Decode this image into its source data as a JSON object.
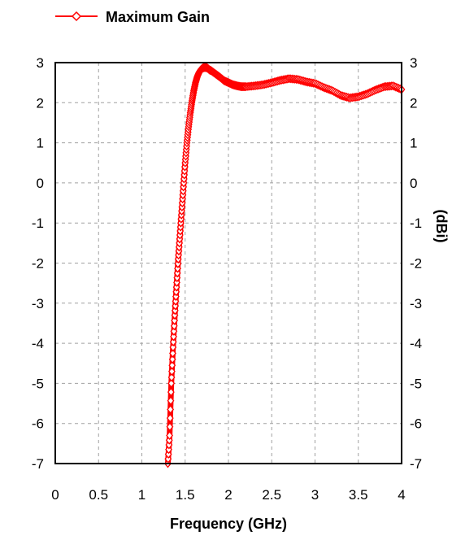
{
  "chart_data": {
    "type": "line",
    "title": "",
    "xlabel": "Frequency (GHz)",
    "ylabel_left": "",
    "ylabel_right": "(dBi)",
    "xlim": [
      0,
      4
    ],
    "ylim": [
      -7,
      3
    ],
    "x_ticks": [
      0,
      0.5,
      1,
      1.5,
      2,
      2.5,
      3,
      3.5,
      4
    ],
    "x_tick_labels": [
      "0",
      "0.5",
      "1",
      "1.5",
      "2",
      "2.5",
      "3",
      "3.5",
      "4"
    ],
    "y_ticks": [
      3,
      2,
      1,
      0,
      -1,
      -2,
      -3,
      -4,
      -5,
      -6,
      -7
    ],
    "y_tick_labels": [
      "3",
      "2",
      "1",
      "0",
      "-1",
      "-2",
      "-3",
      "-4",
      "-5",
      "-6",
      "-7"
    ],
    "grid": true,
    "legend_position": "top-left",
    "colors": {
      "series": "#ff0000",
      "grid": "#a0a0a0",
      "axes": "#000000"
    },
    "series": [
      {
        "name": "Maximum Gain",
        "marker": "diamond",
        "color": "#ff0000",
        "x": [
          1.3,
          1.32,
          1.34,
          1.36,
          1.38,
          1.4,
          1.42,
          1.44,
          1.46,
          1.48,
          1.5,
          1.52,
          1.54,
          1.56,
          1.58,
          1.6,
          1.62,
          1.64,
          1.66,
          1.68,
          1.7,
          1.72,
          1.74,
          1.76,
          1.78,
          1.8,
          1.85,
          1.9,
          1.95,
          2.0,
          2.05,
          2.1,
          2.15,
          2.2,
          2.3,
          2.4,
          2.5,
          2.6,
          2.7,
          2.8,
          2.9,
          3.0,
          3.1,
          3.2,
          3.3,
          3.4,
          3.5,
          3.6,
          3.7,
          3.8,
          3.9,
          4.0
        ],
        "y": [
          -7.0,
          -6.3,
          -5.0,
          -4.1,
          -3.3,
          -2.6,
          -1.9,
          -1.3,
          -0.7,
          -0.1,
          0.5,
          1.0,
          1.4,
          1.75,
          2.05,
          2.3,
          2.5,
          2.65,
          2.75,
          2.82,
          2.86,
          2.88,
          2.88,
          2.86,
          2.82,
          2.8,
          2.72,
          2.64,
          2.55,
          2.5,
          2.45,
          2.42,
          2.4,
          2.4,
          2.42,
          2.45,
          2.5,
          2.56,
          2.6,
          2.58,
          2.52,
          2.48,
          2.38,
          2.3,
          2.18,
          2.12,
          2.15,
          2.22,
          2.32,
          2.4,
          2.42,
          2.33
        ]
      }
    ]
  }
}
